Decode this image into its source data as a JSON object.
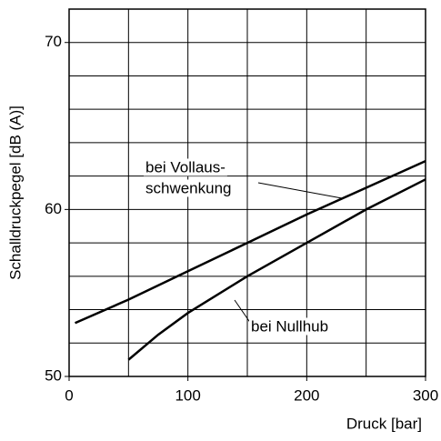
{
  "chart_data": {
    "type": "line",
    "x_label": "Druck [bar]",
    "y_label": "Schalldruckpegel [dB (A)]",
    "xlim": [
      0,
      300
    ],
    "xticks": [
      0,
      100,
      200,
      300
    ],
    "xgrid": [
      0,
      50,
      100,
      150,
      200,
      250,
      300
    ],
    "ylim": [
      50,
      72
    ],
    "yticks": [
      50,
      60,
      70
    ],
    "ygrid": [
      50,
      52,
      54,
      56,
      58,
      60,
      62,
      64,
      66,
      68,
      70,
      72
    ],
    "grid": true,
    "series": [
      {
        "color": "#000000",
        "x": [
          5,
          50,
          100,
          150,
          200,
          250,
          300
        ],
        "values": [
          53.2,
          54.6,
          56.3,
          58.0,
          59.7,
          61.3,
          62.9
        ]
      },
      {
        "color": "#000000",
        "x": [
          50,
          75,
          100,
          150,
          200,
          250,
          300
        ],
        "values": [
          51.0,
          52.5,
          53.8,
          56.0,
          58.0,
          60.0,
          61.8
        ]
      }
    ],
    "annotations": [
      {
        "lines": [
          "bei Vollaus-",
          "schwenkung"
        ]
      },
      {
        "lines": [
          "bei Nullhub"
        ]
      }
    ]
  }
}
